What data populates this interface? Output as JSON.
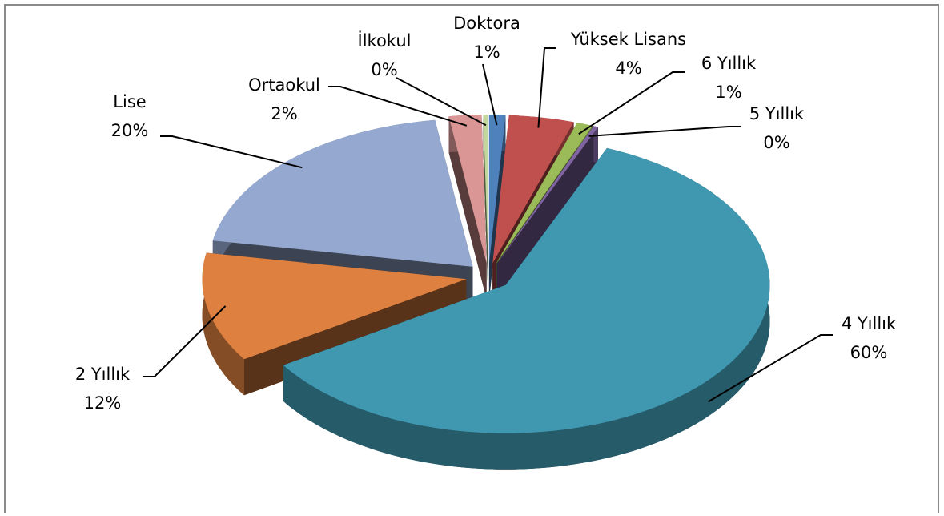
{
  "chart_data": {
    "type": "pie3d",
    "categories": [
      "Doktora",
      "Yüksek Lisans",
      "6 Yıllık",
      "5 Yıllık",
      "4 Yıllık",
      "2 Yıllık",
      "Lise",
      "Ortaokul",
      "İlkokul"
    ],
    "values": [
      1,
      4,
      1,
      0.3,
      60,
      12,
      20,
      2,
      0.3
    ],
    "value_labels": [
      "1%",
      "4%",
      "1%",
      "0%",
      "60%",
      "12%",
      "20%",
      "2%",
      "0%"
    ],
    "colors": [
      "#4f81bd",
      "#c0504d",
      "#9bbb59",
      "#8064a2",
      "#3f97b0",
      "#dd8040",
      "#95a8d0",
      "#d99694",
      "#c3d69b"
    ]
  }
}
